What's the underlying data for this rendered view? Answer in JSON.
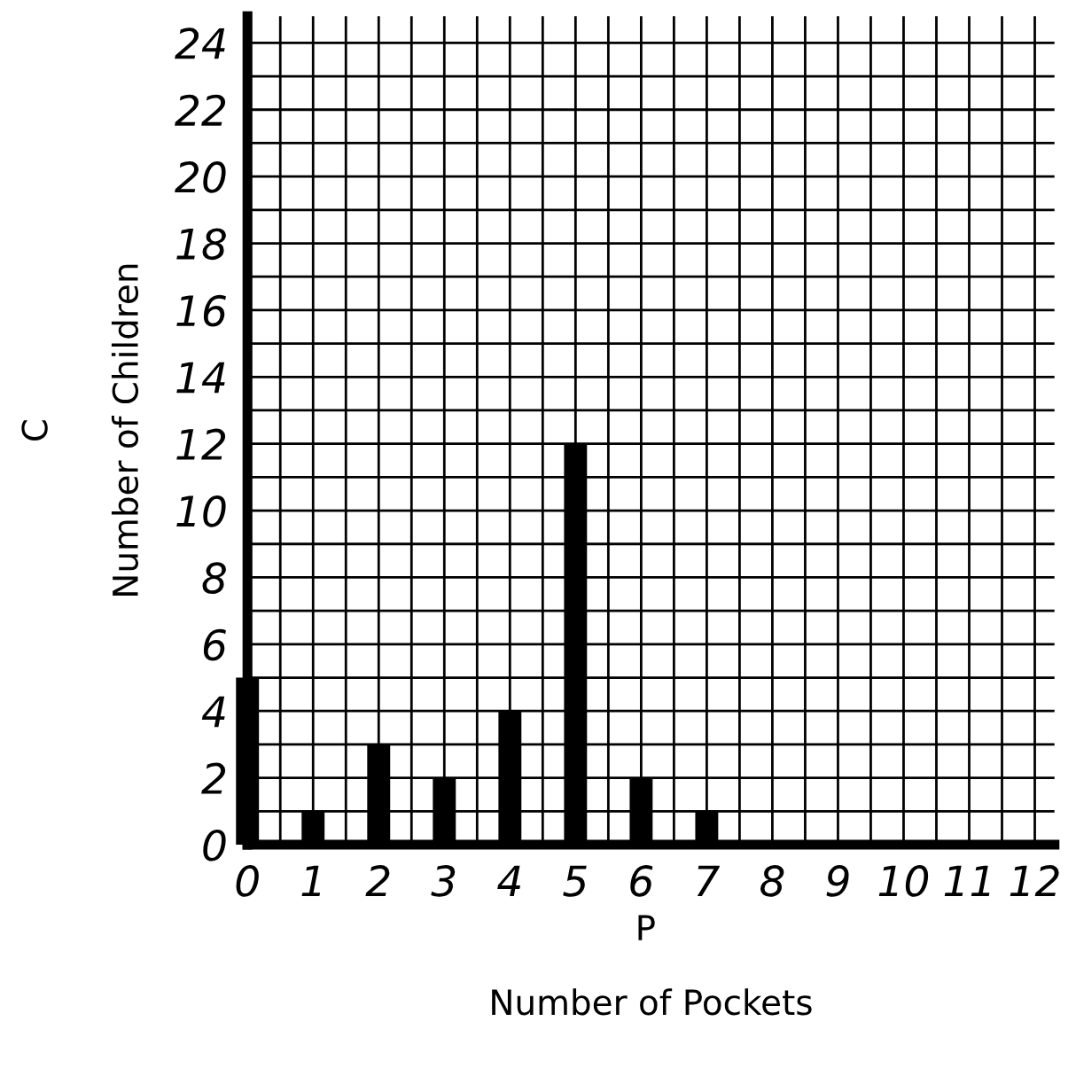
{
  "chart_data": {
    "type": "bar",
    "xlabel": "Number of Pockets",
    "ylabel": "Number of Children",
    "annotations": [
      "P",
      "C"
    ],
    "x": [
      0,
      1,
      2,
      3,
      4,
      5,
      6,
      7
    ],
    "values": [
      5,
      1,
      3,
      2,
      4,
      12,
      2,
      1
    ],
    "color": "#000000",
    "xlim": [
      0,
      12.3
    ],
    "ylim": [
      0,
      24.8
    ],
    "xticks": [
      0,
      {
        "value": 0.5,
        "label": null
      },
      1,
      {
        "value": 1.5,
        "label": null
      },
      2,
      {
        "value": 2.5,
        "label": null
      },
      3,
      {
        "value": 3.5,
        "label": null
      },
      4,
      {
        "value": 4.5,
        "label": null
      },
      5,
      {
        "value": 5.5,
        "label": null
      },
      6,
      {
        "value": 6.5,
        "label": null
      },
      7,
      {
        "value": 7.5,
        "label": null
      },
      8,
      {
        "value": 8.5,
        "label": null
      },
      9,
      {
        "value": 9.5,
        "label": null
      },
      10,
      {
        "value": 10.5,
        "label": null
      },
      11,
      {
        "value": 11.5,
        "label": null
      },
      12
    ],
    "yticks": [
      0,
      {
        "value": 1,
        "label": null
      },
      2,
      {
        "value": 3,
        "label": null
      },
      4,
      {
        "value": 5,
        "label": null
      },
      6,
      {
        "value": 7,
        "label": null
      },
      8,
      {
        "value": 9,
        "label": null
      },
      10,
      {
        "value": 11,
        "label": null
      },
      12,
      {
        "value": 13,
        "label": null
      },
      14,
      {
        "value": 15,
        "label": null
      },
      16,
      {
        "value": 17,
        "label": null
      },
      18,
      {
        "value": 19,
        "label": null
      },
      20,
      {
        "value": 21,
        "label": null
      },
      22,
      {
        "value": 23,
        "label": null
      },
      24
    ],
    "grid": true
  }
}
